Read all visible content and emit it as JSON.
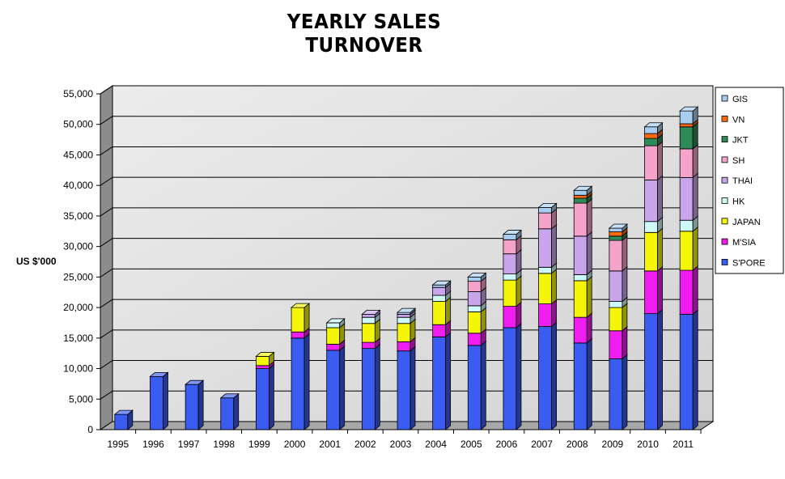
{
  "chart_data": {
    "type": "bar",
    "stacked": true,
    "title": "YEARLY SALES TURNOVER",
    "ylabel": "US $'000",
    "xlabel": "",
    "ylim": [
      0,
      55000
    ],
    "ytick_step": 5000,
    "ytick_labels": [
      "0",
      "5,000",
      "10,000",
      "15,000",
      "20,000",
      "25,000",
      "30,000",
      "35,000",
      "40,000",
      "45,000",
      "50,000",
      "55,000"
    ],
    "grid": true,
    "legend_position": "right",
    "categories": [
      "1995",
      "1996",
      "1997",
      "1998",
      "1999",
      "2000",
      "2001",
      "2002",
      "2003",
      "2004",
      "2005",
      "2006",
      "2007",
      "2008",
      "2009",
      "2010",
      "2011"
    ],
    "series": [
      {
        "name": "S'PORE",
        "color": "#3b5cf0",
        "values": [
          2500,
          8700,
          7400,
          5200,
          10000,
          15000,
          13000,
          13300,
          12900,
          15200,
          13800,
          16700,
          16900,
          14200,
          11600,
          19000,
          18900
        ]
      },
      {
        "name": "M'SIA",
        "color": "#f01df0",
        "values": [
          0,
          0,
          0,
          0,
          500,
          1000,
          1000,
          1000,
          1500,
          2000,
          2000,
          3500,
          3700,
          4200,
          4600,
          7000,
          7200
        ]
      },
      {
        "name": "JAPAN",
        "color": "#f5f50a",
        "values": [
          0,
          0,
          0,
          0,
          1500,
          4000,
          2700,
          3100,
          3000,
          3800,
          3500,
          4300,
          5000,
          6000,
          3800,
          6300,
          6400
        ]
      },
      {
        "name": "HK",
        "color": "#cff8f8",
        "values": [
          0,
          0,
          0,
          0,
          0,
          0,
          800,
          1000,
          1000,
          1000,
          1000,
          1000,
          1000,
          1000,
          1000,
          1800,
          1800
        ]
      },
      {
        "name": "THAI",
        "color": "#c9a6ec",
        "values": [
          0,
          0,
          0,
          0,
          0,
          0,
          0,
          500,
          500,
          1300,
          2300,
          3300,
          6300,
          6300,
          5000,
          6800,
          7000
        ]
      },
      {
        "name": "SH",
        "color": "#f6a3cb",
        "values": [
          0,
          0,
          0,
          0,
          0,
          0,
          0,
          0,
          0,
          0,
          1700,
          2300,
          2600,
          5400,
          5000,
          5600,
          4700
        ]
      },
      {
        "name": "JKT",
        "color": "#2e8b57",
        "values": [
          0,
          0,
          0,
          0,
          0,
          0,
          0,
          0,
          0,
          0,
          0,
          0,
          0,
          800,
          700,
          1200,
          3600
        ]
      },
      {
        "name": "VN",
        "color": "#ff6a10",
        "values": [
          0,
          0,
          0,
          0,
          0,
          0,
          0,
          0,
          0,
          0,
          0,
          0,
          0,
          500,
          700,
          800,
          500
        ]
      },
      {
        "name": "GIS",
        "color": "#a9cdf0",
        "values": [
          0,
          0,
          0,
          0,
          0,
          0,
          0,
          0,
          300,
          400,
          700,
          900,
          900,
          800,
          600,
          1100,
          2100
        ]
      }
    ]
  }
}
